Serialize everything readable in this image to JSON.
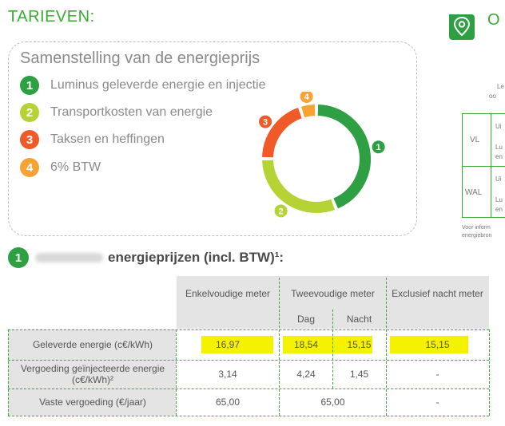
{
  "page": {
    "title": "TARIEVEN:",
    "right_heading_fragment": "O"
  },
  "composition": {
    "heading": "Samenstelling van de energieprijs",
    "items": [
      {
        "num": "1",
        "label": "Luminus geleverde energie en injectie",
        "color": "#2ea043"
      },
      {
        "num": "2",
        "label": "Transportkosten van energie",
        "color": "#b5d334"
      },
      {
        "num": "3",
        "label": "Taksen en heffingen",
        "color": "#f05a28"
      },
      {
        "num": "4",
        "label": "6% BTW",
        "color": "#f7a234"
      }
    ],
    "donut_shares": [
      0.44,
      0.31,
      0.2,
      0.05
    ]
  },
  "prices": {
    "badge": "1",
    "heading": "energieprijzen (incl. BTW)¹:",
    "header": {
      "single": "Enkelvoudige meter",
      "dual": "Tweevoudige meter",
      "day": "Dag",
      "night": "Nacht",
      "excl_night": "Exclusief nacht meter"
    },
    "rows": [
      {
        "label": "Geleverde energie (c€/kWh)",
        "single": "16,97",
        "day": "18,54",
        "night": "15,15",
        "excl": "15,15"
      },
      {
        "label": "Vergoeding geïnjecteerde energie (c€/kWh)²",
        "single": "3,14",
        "day": "4,24",
        "night": "1,45",
        "excl": "-"
      },
      {
        "label": "Vaste vergoeding (€/jaar)",
        "single": "65,00",
        "dual": "65,00",
        "excl": "-"
      }
    ]
  },
  "side_panel": {
    "top_fragment_1": "Le",
    "top_fragment_2": "oo",
    "region_1": "VL",
    "region_2": "WAL",
    "cell_1": "Ui",
    "cell_2": "Lu",
    "cell_3": "en",
    "cell_4": "Ui",
    "cell_5": "Lu",
    "cell_6": "en",
    "footer_1": "Voor inform",
    "footer_2": "energiebron"
  }
}
